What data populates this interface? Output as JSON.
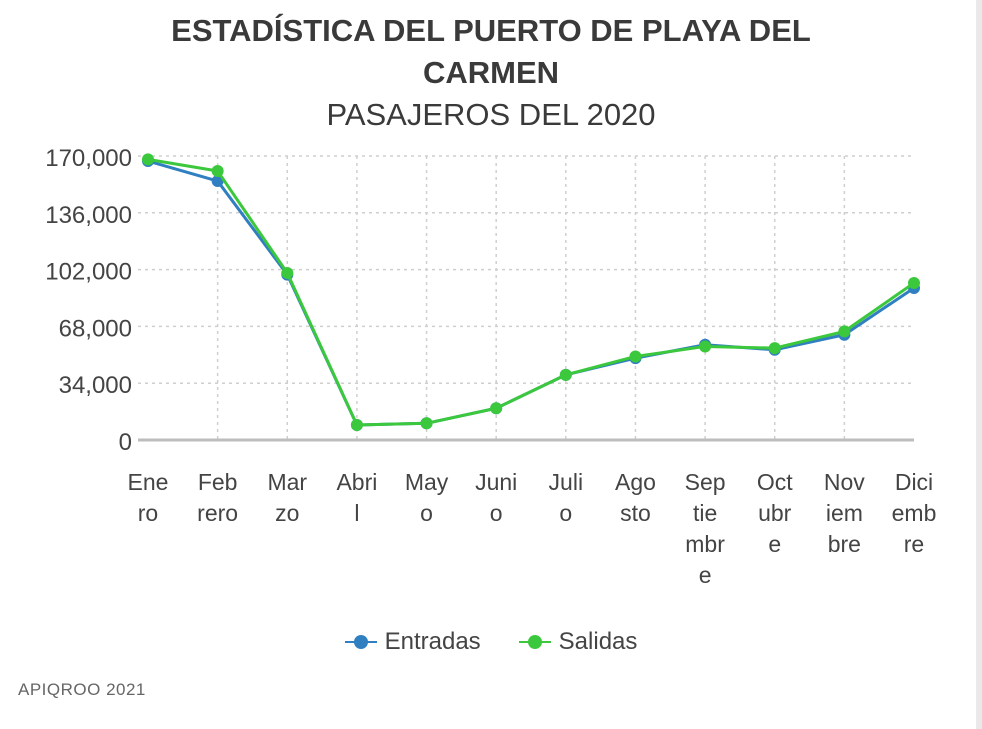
{
  "chart_data": {
    "type": "line",
    "title_lines": [
      "ESTADÍSTICA DEL PUERTO DE PLAYA DEL",
      "CARMEN"
    ],
    "subtitle": "PASAJEROS DEL 2020",
    "categories": [
      [
        "Ene",
        "ro"
      ],
      [
        "Feb",
        "rero"
      ],
      [
        "Mar",
        "zo"
      ],
      [
        "Abri",
        "l"
      ],
      [
        "May",
        "o"
      ],
      [
        "Juni",
        "o"
      ],
      [
        "Juli",
        "o"
      ],
      [
        "Ago",
        "sto"
      ],
      [
        "Sep",
        "tie",
        "mbr",
        "e"
      ],
      [
        "Oct",
        "ubr",
        "e"
      ],
      [
        "Nov",
        "iem",
        "bre"
      ],
      [
        "Dici",
        "emb",
        "re"
      ]
    ],
    "series": [
      {
        "name": "Entradas",
        "color": "#2f7fc1",
        "values": [
          167000,
          155000,
          99000,
          9000,
          10000,
          19000,
          39000,
          49000,
          57000,
          54000,
          63000,
          91000
        ]
      },
      {
        "name": "Salidas",
        "color": "#3cc83c",
        "values": [
          168000,
          161000,
          100000,
          9000,
          10000,
          19000,
          39000,
          50000,
          56000,
          55000,
          65000,
          94000
        ]
      }
    ],
    "yticks": [
      0,
      34000,
      68000,
      102000,
      136000,
      170000
    ],
    "ytick_labels": [
      "0",
      "34,000",
      "68,000",
      "102,000",
      "136,000",
      "170,000"
    ],
    "ylim": [
      0,
      170000
    ],
    "grid": true,
    "legend_position": "bottom"
  },
  "source": "APIQROO 2021"
}
